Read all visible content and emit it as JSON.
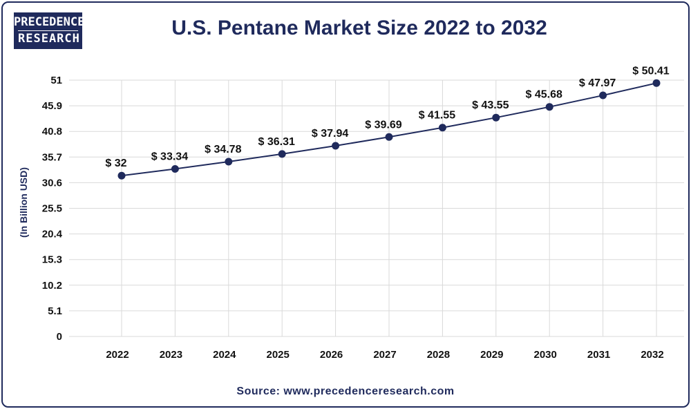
{
  "logo": {
    "line1": "PRECEDENCE",
    "line2": "RESEARCH"
  },
  "colors": {
    "navy": "#1f2a5c",
    "grid": "#d9d9d9",
    "text": "#111111"
  },
  "chart_data": {
    "type": "line",
    "title": "U.S. Pentane Market Size 2022 to 2032",
    "xlabel": "",
    "ylabel": "(In Billion USD)",
    "categories": [
      "2022",
      "2023",
      "2024",
      "2025",
      "2026",
      "2027",
      "2028",
      "2029",
      "2030",
      "2031",
      "2032"
    ],
    "values": [
      32,
      33.34,
      34.78,
      36.31,
      37.94,
      39.69,
      41.55,
      43.55,
      45.68,
      47.97,
      50.41
    ],
    "data_labels": [
      "$ 32",
      "$ 33.34",
      "$ 34.78",
      "$ 36.31",
      "$ 37.94",
      "$ 39.69",
      "$ 41.55",
      "$ 43.55",
      "$ 45.68",
      "$ 47.97",
      "$ 50.41"
    ],
    "y_ticks": [
      "0",
      "5.1",
      "10.2",
      "15.3",
      "20.4",
      "25.5",
      "30.6",
      "35.7",
      "40.8",
      "45.9",
      "51"
    ],
    "ylim": [
      0,
      51
    ],
    "grid": true,
    "legend": "none"
  },
  "source": "Source: www.precedenceresearch.com"
}
